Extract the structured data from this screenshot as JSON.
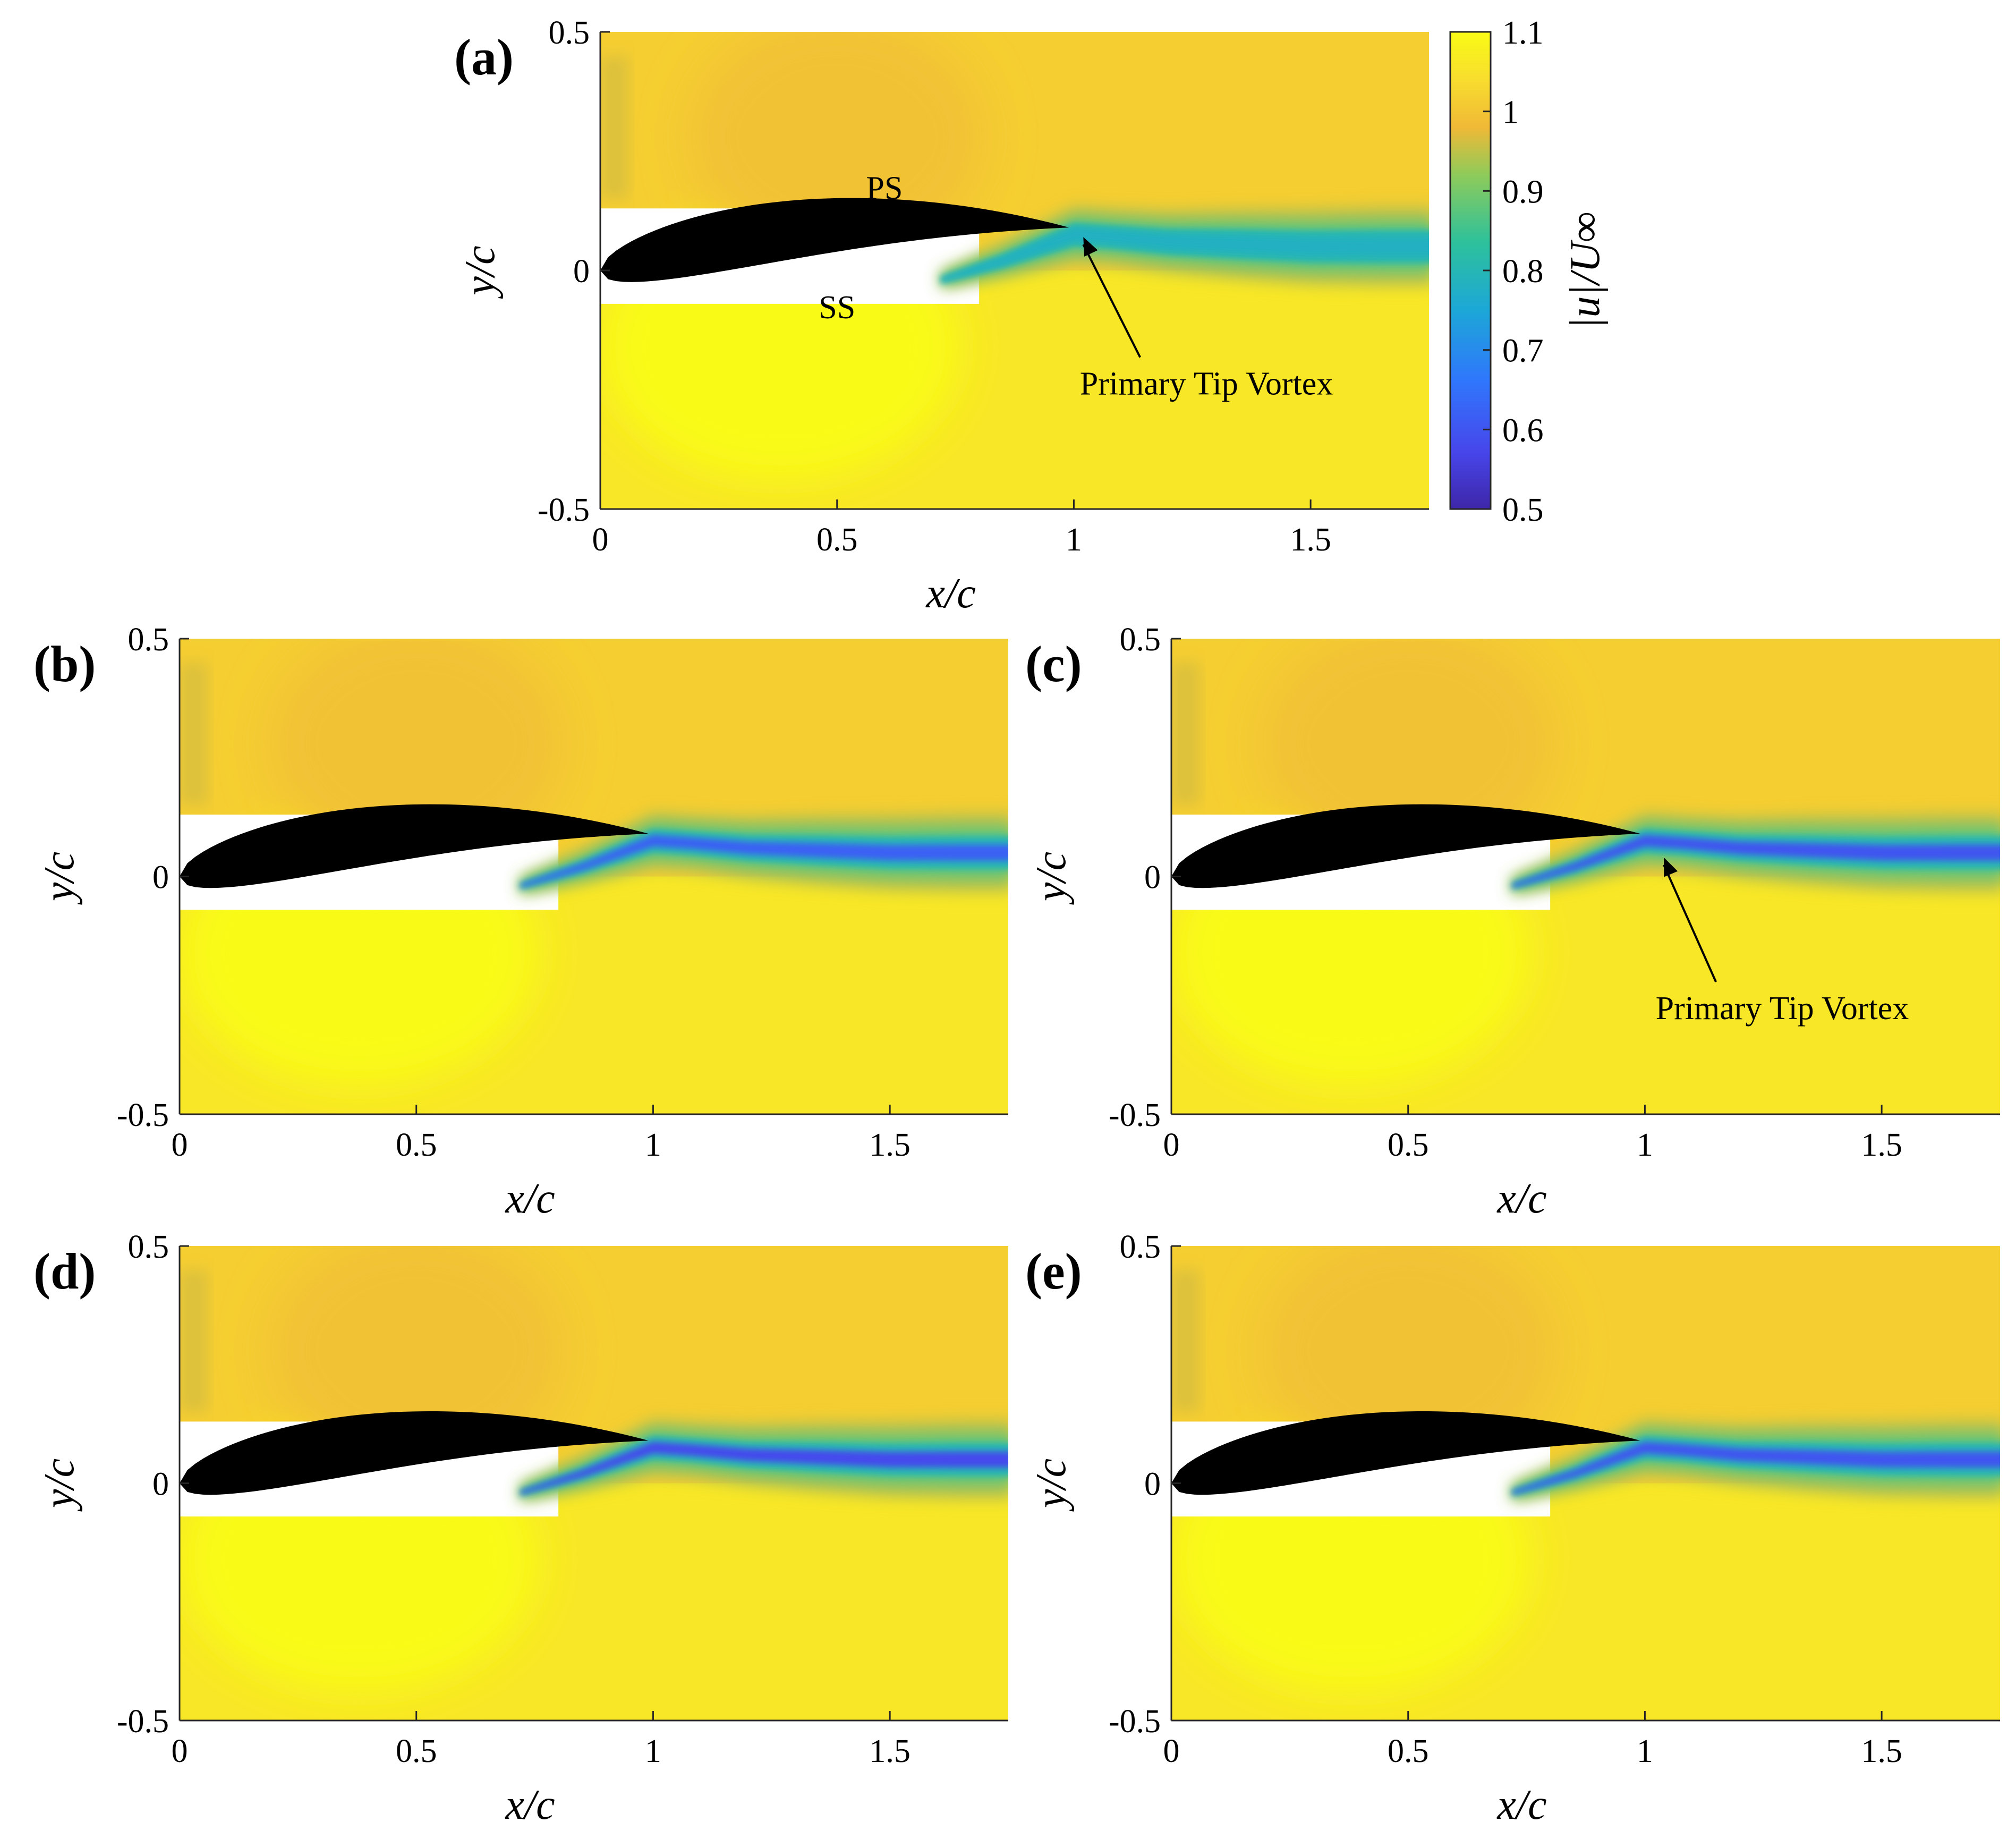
{
  "chart_data": {
    "type": "heatmap",
    "description_quantity": "velocity magnitude contours",
    "colorbar": {
      "label": "|u|/U∞",
      "range": [
        0.5,
        1.1
      ],
      "ticks": [
        "0.5",
        "0.6",
        "0.7",
        "0.8",
        "0.9",
        "1",
        "1.1"
      ],
      "tick_values": [
        0.5,
        0.6,
        0.7,
        0.8,
        0.9,
        1.0,
        1.1
      ],
      "colormap": [
        "#3e26a8",
        "#4746eb",
        "#2f77fc",
        "#1ca8d6",
        "#2ec19b",
        "#8ecb5a",
        "#f0b936",
        "#f8dd2e",
        "#f9fb15"
      ]
    },
    "panels": [
      {
        "id": "a",
        "label": "(a)",
        "xlim": [
          0,
          1.75
        ],
        "ylim": [
          -0.5,
          0.5
        ],
        "xticks": [
          "0",
          "0.5",
          "1",
          "1.5"
        ],
        "xtick_values": [
          0,
          0.5,
          1,
          1.5
        ],
        "yticks": [
          "0.5",
          "0",
          "-0.5"
        ],
        "ytick_values": [
          0.5,
          0,
          -0.5
        ],
        "xlabel": "x/c",
        "ylabel": "y/c",
        "wake_min": 0.78,
        "annotations": [
          {
            "text": "PS",
            "x": 0.6,
            "y": 0.15
          },
          {
            "text": "SS",
            "x": 0.5,
            "y": -0.1
          },
          {
            "text": "Primary Tip Vortex",
            "x": 1.28,
            "y": -0.26,
            "arrow_to": [
              1.02,
              0.07
            ]
          }
        ]
      },
      {
        "id": "b",
        "label": "(b)",
        "xlim": [
          0,
          1.75
        ],
        "ylim": [
          -0.5,
          0.5
        ],
        "xticks": [
          "0",
          "0.5",
          "1",
          "1.5"
        ],
        "xtick_values": [
          0,
          0.5,
          1,
          1.5
        ],
        "yticks": [
          "0.5",
          "0",
          "-0.5"
        ],
        "ytick_values": [
          0.5,
          0,
          -0.5
        ],
        "xlabel": "x/c",
        "ylabel": "y/c",
        "wake_min": 0.62,
        "annotations": []
      },
      {
        "id": "c",
        "label": "(c)",
        "xlim": [
          0,
          1.75
        ],
        "ylim": [
          -0.5,
          0.5
        ],
        "xticks": [
          "0",
          "0.5",
          "1",
          "1.5"
        ],
        "xtick_values": [
          0,
          0.5,
          1,
          1.5
        ],
        "yticks": [
          "0.5",
          "0",
          "-0.5"
        ],
        "ytick_values": [
          0.5,
          0,
          -0.5
        ],
        "xlabel": "x/c",
        "ylabel": "y/c",
        "wake_min": 0.6,
        "annotations": [
          {
            "text": "Primary Tip Vortex",
            "x": 1.29,
            "y": -0.3,
            "arrow_to": [
              1.04,
              0.04
            ]
          }
        ]
      },
      {
        "id": "d",
        "label": "(d)",
        "xlim": [
          0,
          1.75
        ],
        "ylim": [
          -0.5,
          0.5
        ],
        "xticks": [
          "0",
          "0.5",
          "1",
          "1.5"
        ],
        "xtick_values": [
          0,
          0.5,
          1,
          1.5
        ],
        "yticks": [
          "0.5",
          "0",
          "-0.5"
        ],
        "ytick_values": [
          0.5,
          0,
          -0.5
        ],
        "xlabel": "x/c",
        "ylabel": "y/c",
        "wake_min": 0.58,
        "annotations": []
      },
      {
        "id": "e",
        "label": "(e)",
        "xlim": [
          0,
          1.75
        ],
        "ylim": [
          -0.5,
          0.5
        ],
        "xticks": [
          "0",
          "0.5",
          "1",
          "1.5"
        ],
        "xtick_values": [
          0,
          0.5,
          1,
          1.5
        ],
        "yticks": [
          "0.5",
          "0",
          "-0.5"
        ],
        "ytick_values": [
          0.5,
          0,
          -0.5
        ],
        "xlabel": "x/c",
        "ylabel": "y/c",
        "wake_min": 0.6,
        "annotations": []
      }
    ]
  }
}
